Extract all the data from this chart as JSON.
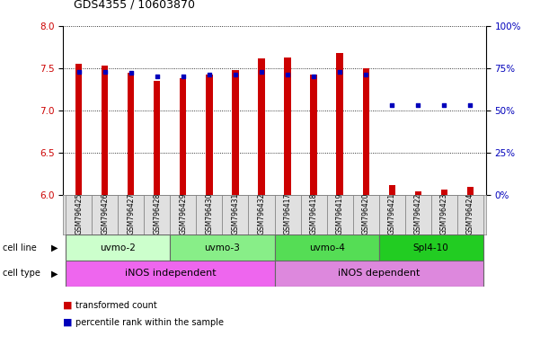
{
  "title": "GDS4355 / 10603870",
  "samples": [
    "GSM796425",
    "GSM796426",
    "GSM796427",
    "GSM796428",
    "GSM796429",
    "GSM796430",
    "GSM796431",
    "GSM796432",
    "GSM796417",
    "GSM796418",
    "GSM796419",
    "GSM796420",
    "GSM796421",
    "GSM796422",
    "GSM796423",
    "GSM796424"
  ],
  "red_values": [
    7.55,
    7.53,
    7.45,
    7.35,
    7.38,
    7.42,
    7.48,
    7.62,
    7.63,
    7.42,
    7.68,
    7.5,
    6.12,
    6.04,
    6.06,
    6.1
  ],
  "blue_values": [
    73,
    73,
    72,
    70,
    70,
    71,
    71,
    73,
    71,
    70,
    73,
    71,
    53,
    53,
    53,
    53
  ],
  "ylim_left": [
    6,
    8
  ],
  "ylim_right": [
    0,
    100
  ],
  "yticks_left": [
    6,
    6.5,
    7,
    7.5,
    8
  ],
  "yticks_right": [
    0,
    25,
    50,
    75,
    100
  ],
  "ytick_labels_right": [
    "0%",
    "25%",
    "50%",
    "75%",
    "100%"
  ],
  "bar_color": "#cc0000",
  "dot_color": "#0000bb",
  "baseline": 6,
  "cell_lines": [
    {
      "label": "uvmo-2",
      "start": 0,
      "end": 4,
      "color": "#ccffcc"
    },
    {
      "label": "uvmo-3",
      "start": 4,
      "end": 8,
      "color": "#88ee88"
    },
    {
      "label": "uvmo-4",
      "start": 8,
      "end": 12,
      "color": "#55dd55"
    },
    {
      "label": "Spl4-10",
      "start": 12,
      "end": 16,
      "color": "#22cc22"
    }
  ],
  "cell_types": [
    {
      "label": "iNOS independent",
      "start": 0,
      "end": 8,
      "color": "#ee66ee"
    },
    {
      "label": "iNOS dependent",
      "start": 8,
      "end": 16,
      "color": "#dd88dd"
    }
  ],
  "background_color": "#ffffff",
  "bar_width": 0.25,
  "title_fontsize": 9,
  "tick_fontsize": 7.5,
  "label_fontsize": 7,
  "cell_label_fontsize": 7.5
}
